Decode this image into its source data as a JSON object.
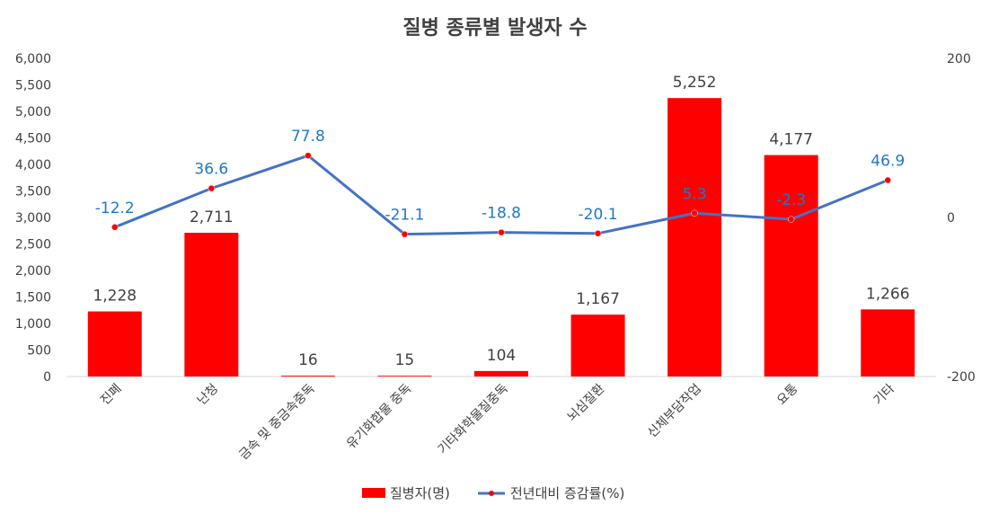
{
  "chart_data": {
    "type": "bar+line",
    "title": "질병 종류별 발생자 수",
    "categories": [
      "진폐",
      "난청",
      "금속 및 중금속중독",
      "유기화합물 중독",
      "기타화학물질중독",
      "뇌심질환",
      "신체부담작업",
      "요통",
      "기타"
    ],
    "series": [
      {
        "name": "질병자(명)",
        "type": "bar",
        "axis": "left",
        "color": "#ff0000",
        "values": [
          1228,
          2711,
          16,
          15,
          104,
          1167,
          5252,
          4177,
          1266
        ],
        "labels": [
          "1,228",
          "2,711",
          "16",
          "15",
          "104",
          "1,167",
          "5,252",
          "4,177",
          "1,266"
        ]
      },
      {
        "name": "전년대비 증감률(%)",
        "type": "line",
        "axis": "right",
        "color": "#4472c4",
        "marker_color": "#ff0000",
        "values": [
          -12.2,
          36.6,
          77.8,
          -21.1,
          -18.8,
          -20.1,
          5.3,
          -2.3,
          46.9
        ],
        "labels": [
          "-12.2",
          "36.6",
          "77.8",
          "-21.1",
          "-18.8",
          "-20.1",
          "5.3",
          "-2.3",
          "46.9"
        ]
      }
    ],
    "y_left": {
      "min": 0,
      "max": 6000,
      "step": 500,
      "tick_labels": [
        "0",
        "500",
        "1,000",
        "1,500",
        "2,000",
        "2,500",
        "3,000",
        "3,500",
        "4,000",
        "4,500",
        "5,000",
        "5,500",
        "6,000"
      ]
    },
    "y_right": {
      "min": -200,
      "max": 200,
      "step": 200,
      "tick_labels": [
        "-200",
        "0",
        "200"
      ]
    },
    "legend_position": "bottom",
    "grid": false
  }
}
